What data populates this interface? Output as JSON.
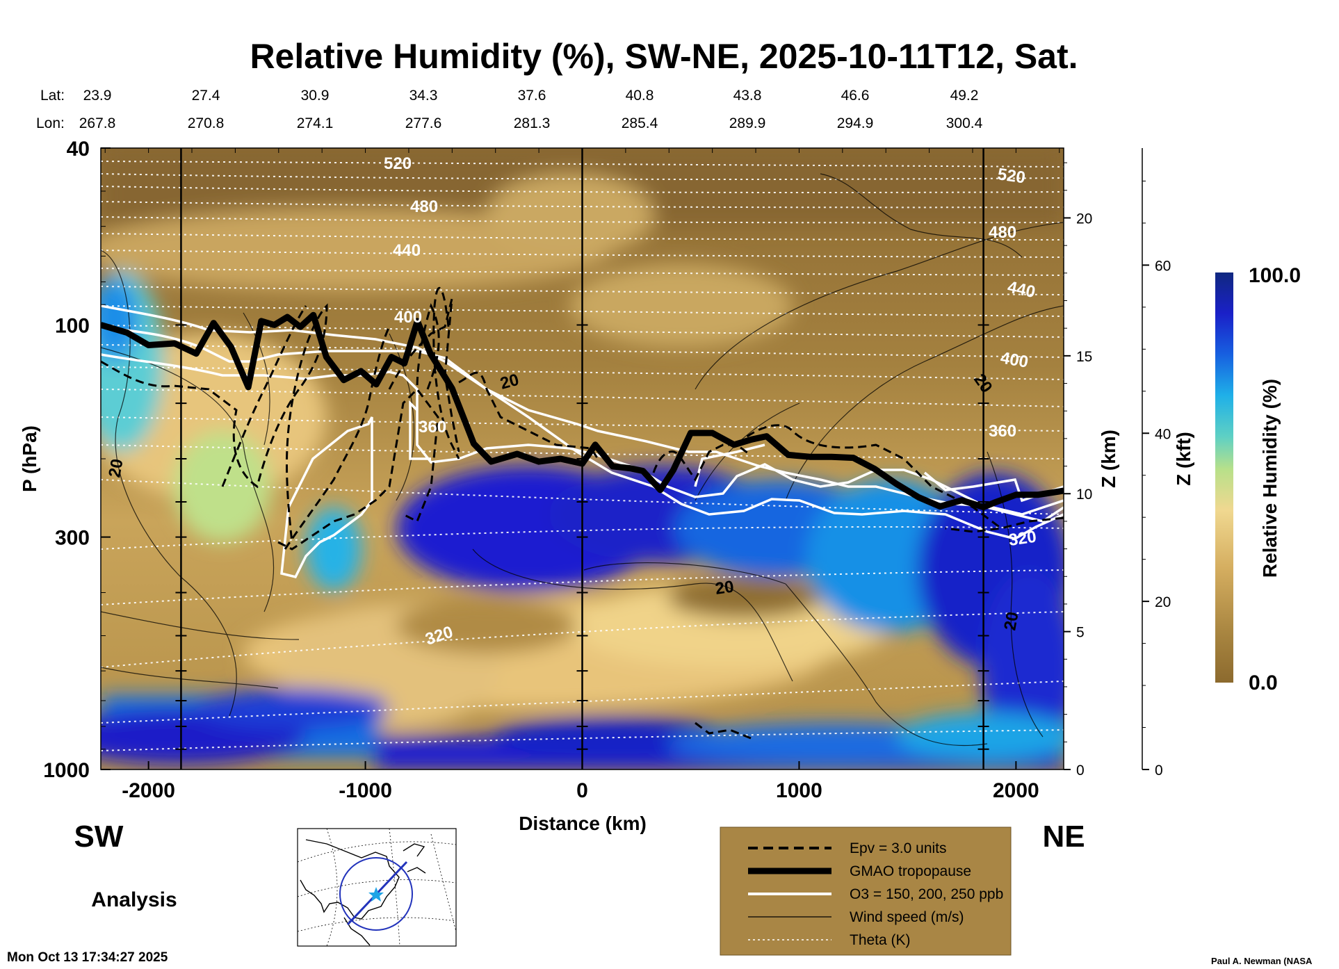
{
  "title": "Relative Humidity (%), SW-NE, 2025-10-11T12, Sat.",
  "coords": {
    "lat_label": "Lat:",
    "lon_label": "Lon:",
    "lat": [
      "23.9",
      "27.4",
      "30.9",
      "34.3",
      "37.6",
      "40.8",
      "43.8",
      "46.6",
      "49.2"
    ],
    "lon": [
      "267.8",
      "270.8",
      "274.1",
      "277.6",
      "281.3",
      "285.4",
      "289.9",
      "294.9",
      "300.4"
    ]
  },
  "colors": {
    "dry": "#8c6a2e",
    "tan": "#d9b469",
    "moist_blue": "#1a1acc",
    "legend_bg": "#a98645"
  },
  "chart_data": {
    "type": "heatmap",
    "title": "Relative Humidity (%), SW-NE, 2025-10-11T12, Sat.",
    "xlabel": "Distance (km)",
    "ylabel": "P (hPa)",
    "right_axis_1_label": "Z (km)",
    "right_axis_2_label": "Z (kft)",
    "colorbar_label": "Relative Humidity (%)",
    "xlim": [
      -2220,
      2220
    ],
    "ylim": [
      1000,
      40
    ],
    "x_ticks": [
      -2000,
      -1000,
      0,
      1000,
      2000
    ],
    "x_tick_labels": [
      "-2000",
      "-1000",
      "0",
      "1000",
      "2000"
    ],
    "y_ticks": [
      1000,
      300,
      100,
      40
    ],
    "y_tick_labels": [
      "1000",
      "300",
      "100",
      "40"
    ],
    "z_km_ticks": [
      0,
      5,
      10,
      15,
      20
    ],
    "z_km_tick_labels": [
      "0",
      "5",
      "10",
      "15",
      "20"
    ],
    "z_kft_ticks": [
      0,
      20,
      40,
      60
    ],
    "z_kft_tick_labels": [
      "0",
      "20",
      "40",
      "60"
    ],
    "colorbar_range": [
      0.0,
      100.0
    ],
    "colorbar_labels": [
      "100.0",
      "0.0"
    ],
    "vertical_markers_km": [
      -1850,
      0,
      1850
    ],
    "tropopause_hpa": [
      [
        -2220,
        100
      ],
      [
        -2100,
        104
      ],
      [
        -2000,
        111
      ],
      [
        -1880,
        110
      ],
      [
        -1780,
        116
      ],
      [
        -1700,
        99
      ],
      [
        -1620,
        112
      ],
      [
        -1540,
        138
      ],
      [
        -1480,
        98
      ],
      [
        -1420,
        100
      ],
      [
        -1360,
        96
      ],
      [
        -1300,
        101
      ],
      [
        -1240,
        95
      ],
      [
        -1180,
        118
      ],
      [
        -1100,
        133
      ],
      [
        -1020,
        127
      ],
      [
        -950,
        136
      ],
      [
        -880,
        118
      ],
      [
        -820,
        122
      ],
      [
        -760,
        98
      ],
      [
        -700,
        116
      ],
      [
        -600,
        139
      ],
      [
        -500,
        185
      ],
      [
        -420,
        203
      ],
      [
        -300,
        195
      ],
      [
        -200,
        203
      ],
      [
        -100,
        200
      ],
      [
        0,
        205
      ],
      [
        60,
        186
      ],
      [
        140,
        208
      ],
      [
        220,
        210
      ],
      [
        280,
        213
      ],
      [
        360,
        235
      ],
      [
        420,
        212
      ],
      [
        500,
        175
      ],
      [
        600,
        175
      ],
      [
        700,
        186
      ],
      [
        780,
        181
      ],
      [
        850,
        178
      ],
      [
        950,
        196
      ],
      [
        1050,
        198
      ],
      [
        1150,
        198
      ],
      [
        1250,
        199
      ],
      [
        1350,
        211
      ],
      [
        1450,
        228
      ],
      [
        1550,
        244
      ],
      [
        1650,
        256
      ],
      [
        1750,
        248
      ],
      [
        1850,
        257
      ],
      [
        1900,
        251
      ],
      [
        2000,
        241
      ],
      [
        2100,
        241
      ],
      [
        2220,
        236
      ]
    ],
    "ozone_contours_ppb": [
      "150",
      "200",
      "250"
    ],
    "theta_contour_labels_K": [
      "520",
      "480",
      "440",
      "400",
      "360",
      "320"
    ],
    "wind_contour_labels_ms": [
      "20",
      "20",
      "20",
      "20",
      "20"
    ],
    "legend": [
      "Epv = 3.0 units",
      "GMAO tropopause",
      "O3 = 150, 200, 250 ppb",
      "Wind speed (m/s)",
      "Theta (K)"
    ]
  },
  "side_labels": {
    "left": "SW",
    "right": "NE"
  },
  "mode_label": "Analysis",
  "timestamp": "Mon Oct 13 17:34:27 2025",
  "credit": "Paul A. Newman (NASA"
}
